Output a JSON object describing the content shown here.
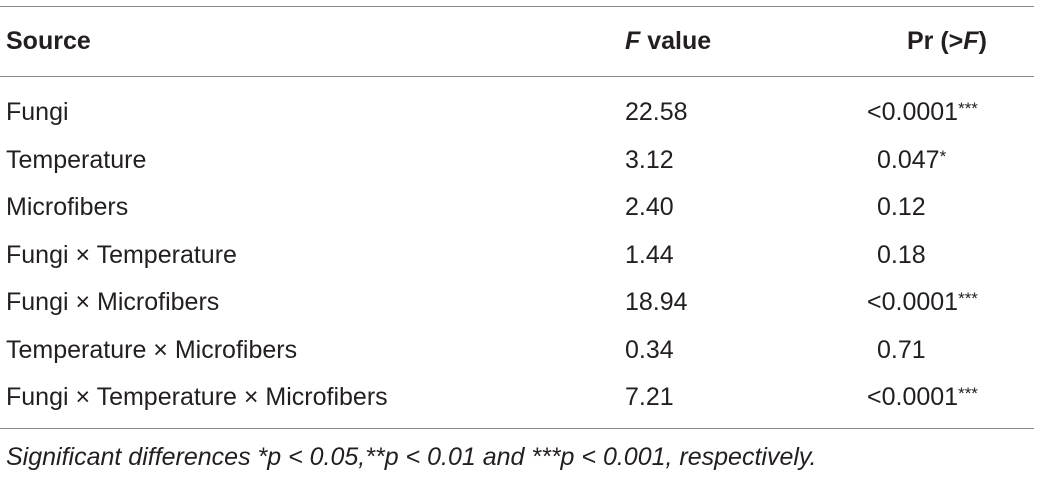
{
  "table": {
    "headers": {
      "source": "Source",
      "f_italic": "F",
      "f_rest": " value",
      "p_prefix": "Pr (>",
      "p_italic": "F",
      "p_suffix": ")"
    },
    "rows": [
      {
        "source": "Fungi",
        "f": "22.58",
        "p": "<0.0001",
        "stars": "***"
      },
      {
        "source": "Temperature",
        "f": "3.12",
        "p": "0.047",
        "stars": "*"
      },
      {
        "source": "Microfibers",
        "f": "2.40",
        "p": "0.12",
        "stars": ""
      },
      {
        "source": "Fungi × Temperature",
        "f": "1.44",
        "p": "0.18",
        "stars": ""
      },
      {
        "source": "Fungi × Microfibers",
        "f": "18.94",
        "p": "<0.0001",
        "stars": "***"
      },
      {
        "source": "Temperature × Microfibers",
        "f": "0.34",
        "p": "0.71",
        "stars": ""
      },
      {
        "source": "Fungi × Temperature × Microfibers",
        "f": "7.21",
        "p": "<0.0001",
        "stars": "***"
      }
    ]
  },
  "footnote": "Significant differences *p < 0.05,**p < 0.01 and ***p < 0.001, respectively."
}
